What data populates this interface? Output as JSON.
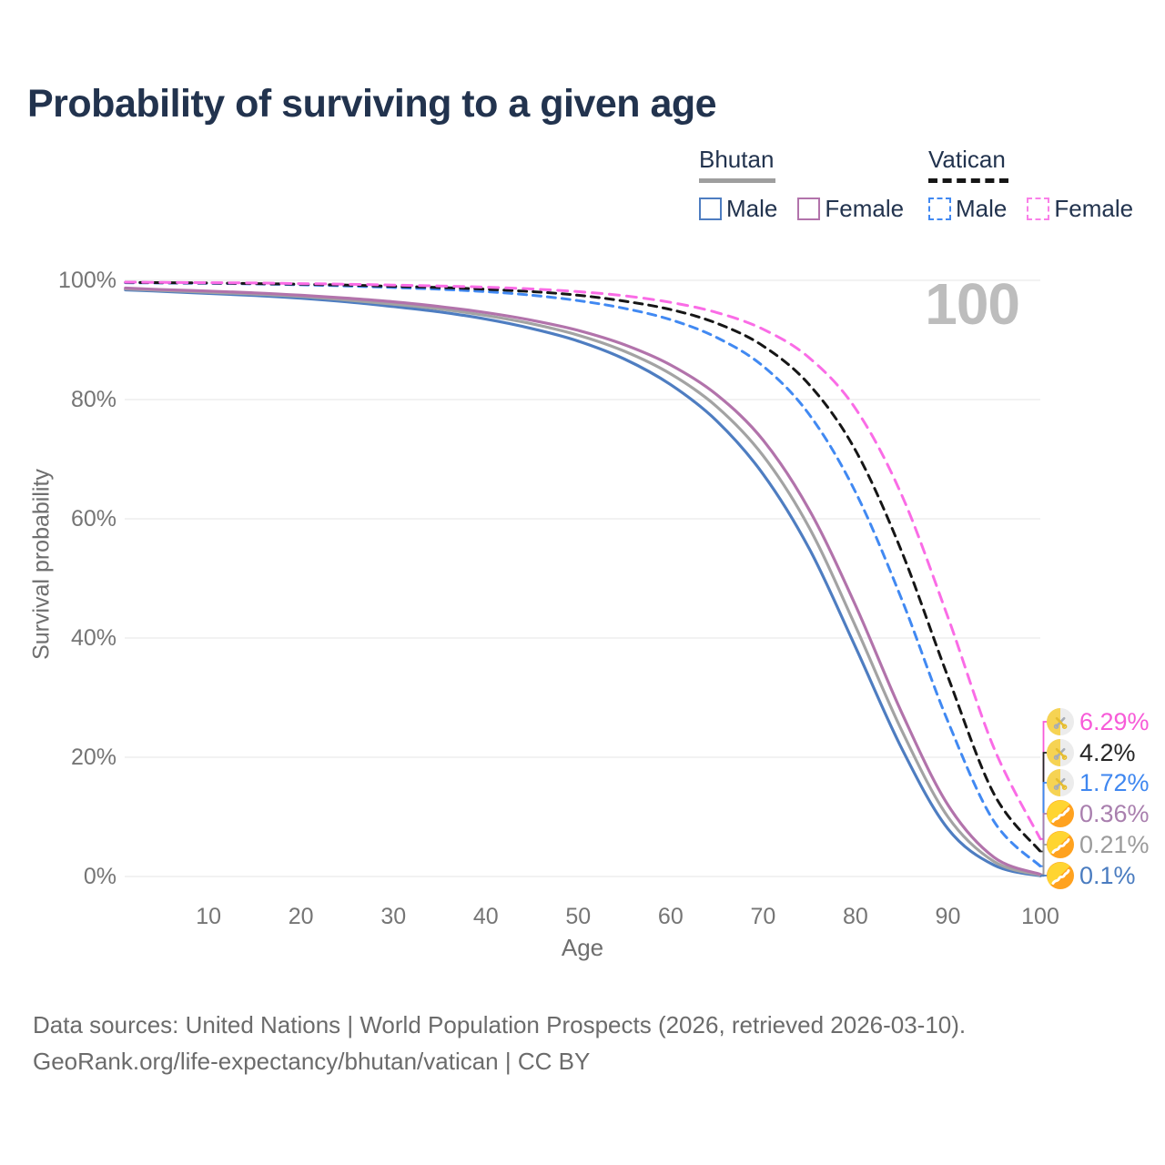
{
  "title": "Probability of surviving to a given age",
  "watermark_age": "100",
  "legend": {
    "groups": [
      {
        "name": "Bhutan",
        "line_style": "solid",
        "underline_color": "#9e9e9e",
        "items": [
          {
            "label": "Male",
            "color": "#4e7dc1"
          },
          {
            "label": "Female",
            "color": "#b273ab"
          }
        ]
      },
      {
        "name": "Vatican",
        "line_style": "dashed",
        "underline_color": "#161616",
        "items": [
          {
            "label": "Male",
            "color": "#4189f2"
          },
          {
            "label": "Female",
            "color": "#fa80e8"
          }
        ]
      }
    ]
  },
  "chart_data": {
    "type": "line",
    "title": "Probability of surviving to a given age",
    "xlabel": "Age",
    "ylabel": "Survival probability",
    "xlim": [
      0,
      100
    ],
    "ylim": [
      0,
      100
    ],
    "x_ticks": [
      10,
      20,
      30,
      40,
      50,
      60,
      70,
      80,
      90,
      100
    ],
    "y_ticks": {
      "values": [
        0,
        20,
        40,
        60,
        80,
        100
      ],
      "labels": [
        "0%",
        "20%",
        "40%",
        "60%",
        "80%",
        "100%"
      ]
    },
    "grid": "horizontal",
    "legend_position": "top-right",
    "ages": [
      1,
      5,
      10,
      15,
      20,
      25,
      30,
      35,
      40,
      45,
      50,
      55,
      60,
      65,
      70,
      75,
      80,
      85,
      90,
      95,
      100
    ],
    "series": [
      {
        "name": "Vatican Female",
        "country": "Vatican",
        "sex": "Female",
        "flag": "vatican",
        "color": "#fa6ce6",
        "dash": true,
        "dash_pattern": "11 8",
        "end_label": "6.29%",
        "label_color": "#f75bd8",
        "values": [
          99.7,
          99.65,
          99.6,
          99.55,
          99.45,
          99.35,
          99.2,
          99.05,
          98.85,
          98.55,
          98.1,
          97.4,
          96.3,
          94.6,
          91.8,
          87.0,
          78.5,
          64.0,
          43.5,
          21.5,
          6.29
        ]
      },
      {
        "name": "Vatican",
        "country": "Vatican",
        "sex": "Both",
        "flag": "vatican",
        "color": "#161616",
        "dash": true,
        "dash_pattern": "9 7",
        "end_label": "4.2%",
        "label_color": "#262626",
        "values": [
          99.65,
          99.6,
          99.55,
          99.45,
          99.35,
          99.2,
          99.0,
          98.8,
          98.5,
          98.1,
          97.5,
          96.5,
          95.1,
          92.8,
          89.0,
          82.5,
          71.5,
          54.5,
          33.5,
          13.8,
          4.2
        ]
      },
      {
        "name": "Vatican Male",
        "country": "Vatican",
        "sex": "Male",
        "flag": "vatican",
        "color": "#4189f2",
        "dash": true,
        "dash_pattern": "9 7",
        "end_label": "1.72%",
        "label_color": "#3f87f0",
        "values": [
          99.6,
          99.55,
          99.5,
          99.4,
          99.25,
          99.05,
          98.8,
          98.5,
          98.1,
          97.5,
          96.6,
          95.3,
          93.4,
          90.4,
          85.6,
          77.5,
          64.5,
          46.5,
          26.0,
          9.2,
          1.72
        ]
      },
      {
        "name": "Bhutan Female",
        "country": "Bhutan",
        "sex": "Female",
        "flag": "bhutan",
        "color": "#b273ab",
        "dash": false,
        "dash_pattern": "",
        "end_label": "0.36%",
        "label_color": "#a97fae",
        "values": [
          98.7,
          98.45,
          98.2,
          97.9,
          97.5,
          97.0,
          96.4,
          95.6,
          94.6,
          93.3,
          91.6,
          89.2,
          85.8,
          80.8,
          73.2,
          61.5,
          45.5,
          27.5,
          12.0,
          3.2,
          0.36
        ]
      },
      {
        "name": "Bhutan",
        "country": "Bhutan",
        "sex": "Both",
        "flag": "bhutan",
        "color": "#a3a3a3",
        "dash": false,
        "dash_pattern": "",
        "end_label": "0.21%",
        "label_color": "#9b9b9b",
        "values": [
          98.55,
          98.3,
          98.0,
          97.7,
          97.3,
          96.7,
          96.0,
          95.2,
          94.1,
          92.7,
          90.8,
          88.1,
          84.3,
          78.8,
          70.6,
          58.5,
          42.0,
          24.5,
          10.0,
          2.5,
          0.21
        ]
      },
      {
        "name": "Bhutan Male",
        "country": "Bhutan",
        "sex": "Male",
        "flag": "bhutan",
        "color": "#4e7dc1",
        "dash": false,
        "dash_pattern": "",
        "end_label": "0.1%",
        "label_color": "#4a7cc0",
        "values": [
          98.4,
          98.15,
          97.8,
          97.45,
          97.0,
          96.4,
          95.6,
          94.7,
          93.5,
          91.9,
          89.8,
          86.8,
          82.5,
          76.4,
          67.5,
          55.0,
          38.5,
          21.5,
          8.0,
          1.9,
          0.1
        ]
      }
    ]
  },
  "footer": {
    "line1": "Data sources: United Nations | World Population Prospects (2026, retrieved 2026-03-10).",
    "line2": "GeoRank.org/life-expectancy/bhutan/vatican | CC BY"
  }
}
